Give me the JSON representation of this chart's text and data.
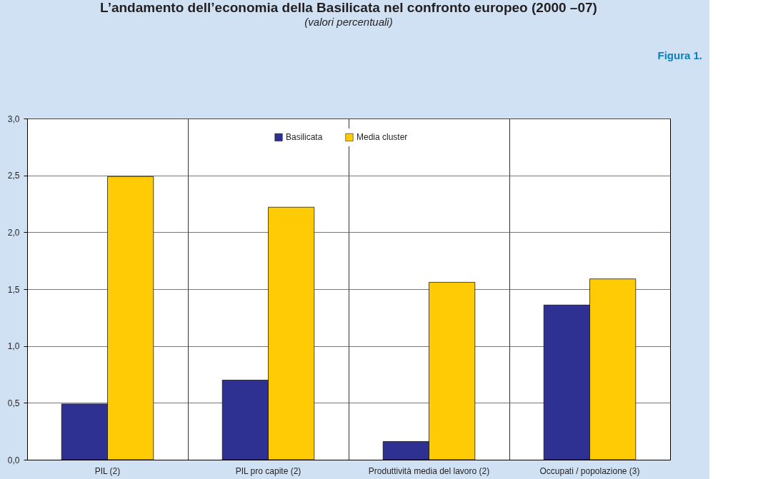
{
  "chart_data": {
    "type": "bar",
    "title": "L’andamento dell’economia della Basilicata nel confronto europeo (2000 –07)",
    "subtitle": "(valori percentuali)",
    "annotations": [
      "Figura 1."
    ],
    "categories": [
      "PIL (2)",
      "PIL pro capite (2)",
      "Produttività media del lavoro (2)",
      "Occupati / popolazione (3)"
    ],
    "series": [
      {
        "name": "Basilicata",
        "color": "#2e3192",
        "values": [
          0.49,
          0.7,
          0.16,
          1.36
        ]
      },
      {
        "name": "Media cluster",
        "color": "#ffcb05",
        "values": [
          2.49,
          2.22,
          1.56,
          1.59
        ]
      }
    ],
    "ylim": [
      0,
      3
    ],
    "yticks": [
      {
        "value": 0,
        "label": "0,0"
      },
      {
        "value": 0.5,
        "label": "0,5"
      },
      {
        "value": 1,
        "label": "1,0"
      },
      {
        "value": 1.5,
        "label": "1,5"
      },
      {
        "value": 2,
        "label": "2,0"
      },
      {
        "value": 2.5,
        "label": "2,5"
      },
      {
        "value": 3,
        "label": "3,0"
      }
    ],
    "grid": true,
    "legend": "top"
  }
}
